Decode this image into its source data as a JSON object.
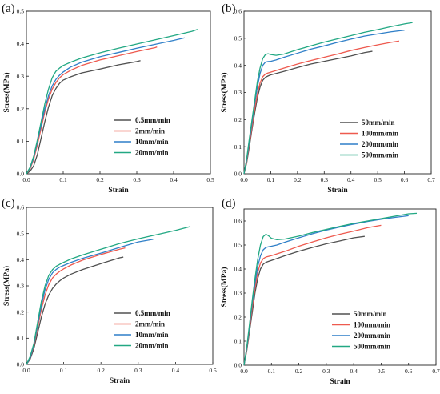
{
  "chart_data": [
    {
      "type": "line",
      "panel_label": "(a)",
      "xlabel": "Strain",
      "ylabel": "Stress(MPa)",
      "xlim": [
        0,
        0.5
      ],
      "ylim": [
        0,
        0.5
      ],
      "xticks": [
        0.0,
        0.1,
        0.2,
        0.3,
        0.4,
        0.5
      ],
      "yticks": [
        0.0,
        0.1,
        0.2,
        0.3,
        0.4,
        0.5
      ],
      "xtick_labels": [
        "0.0",
        "0.1",
        "0.2",
        "0.3",
        "0.4",
        "0.5"
      ],
      "ytick_labels": [
        "0.0",
        "0.1",
        "0.2",
        "0.3",
        "0.4",
        "0.5"
      ],
      "grid": false,
      "legend_position": "bottom-right",
      "series": [
        {
          "name": "0.5mm/min",
          "color": "#505050",
          "x": [
            0,
            0.01,
            0.02,
            0.03,
            0.04,
            0.05,
            0.06,
            0.07,
            0.08,
            0.09,
            0.1,
            0.12,
            0.15,
            0.2,
            0.25,
            0.3,
            0.31
          ],
          "y": [
            0,
            0.008,
            0.025,
            0.06,
            0.11,
            0.16,
            0.205,
            0.24,
            0.262,
            0.278,
            0.288,
            0.298,
            0.31,
            0.322,
            0.335,
            0.345,
            0.348
          ]
        },
        {
          "name": "2mm/min",
          "color": "#ee5a4f",
          "x": [
            0,
            0.01,
            0.02,
            0.03,
            0.04,
            0.05,
            0.06,
            0.07,
            0.08,
            0.09,
            0.1,
            0.12,
            0.15,
            0.2,
            0.25,
            0.3,
            0.35,
            0.355
          ],
          "y": [
            0,
            0.015,
            0.045,
            0.09,
            0.14,
            0.19,
            0.23,
            0.26,
            0.28,
            0.295,
            0.305,
            0.318,
            0.333,
            0.35,
            0.363,
            0.376,
            0.388,
            0.39
          ]
        },
        {
          "name": "10mm/min",
          "color": "#2f7fc8",
          "x": [
            0,
            0.01,
            0.02,
            0.03,
            0.04,
            0.05,
            0.06,
            0.07,
            0.08,
            0.09,
            0.1,
            0.12,
            0.15,
            0.2,
            0.25,
            0.3,
            0.35,
            0.4,
            0.43
          ],
          "y": [
            0,
            0.018,
            0.05,
            0.1,
            0.15,
            0.2,
            0.24,
            0.27,
            0.29,
            0.303,
            0.313,
            0.328,
            0.343,
            0.36,
            0.373,
            0.386,
            0.398,
            0.41,
            0.418
          ]
        },
        {
          "name": "20mm/min",
          "color": "#22a883",
          "x": [
            0,
            0.01,
            0.02,
            0.03,
            0.04,
            0.05,
            0.06,
            0.07,
            0.08,
            0.09,
            0.1,
            0.12,
            0.15,
            0.2,
            0.25,
            0.3,
            0.35,
            0.4,
            0.45,
            0.465
          ],
          "y": [
            0,
            0.02,
            0.055,
            0.105,
            0.16,
            0.215,
            0.26,
            0.295,
            0.315,
            0.325,
            0.333,
            0.343,
            0.356,
            0.372,
            0.386,
            0.399,
            0.412,
            0.425,
            0.438,
            0.444
          ]
        }
      ]
    },
    {
      "type": "line",
      "panel_label": "(b)",
      "xlabel": "Strain",
      "ylabel": "Stress(MPa)",
      "xlim": [
        0,
        0.7
      ],
      "ylim": [
        0,
        0.6
      ],
      "xticks": [
        0.0,
        0.1,
        0.2,
        0.3,
        0.4,
        0.5,
        0.6,
        0.7
      ],
      "yticks": [
        0.0,
        0.1,
        0.2,
        0.3,
        0.4,
        0.5,
        0.6
      ],
      "xtick_labels": [
        "0.0",
        "0.1",
        "0.2",
        "0.3",
        "0.4",
        "0.5",
        "0.6",
        "0.7"
      ],
      "ytick_labels": [
        "0.0",
        "0.1",
        "0.2",
        "0.3",
        "0.4",
        "0.5",
        "0.6"
      ],
      "grid": false,
      "legend_position": "bottom-right",
      "series": [
        {
          "name": "50mm/min",
          "color": "#505050",
          "x": [
            0,
            0.01,
            0.02,
            0.03,
            0.04,
            0.05,
            0.06,
            0.07,
            0.08,
            0.09,
            0.1,
            0.15,
            0.2,
            0.25,
            0.3,
            0.35,
            0.4,
            0.45,
            0.48
          ],
          "y": [
            0,
            0.04,
            0.1,
            0.165,
            0.225,
            0.28,
            0.32,
            0.345,
            0.356,
            0.361,
            0.365,
            0.378,
            0.392,
            0.405,
            0.415,
            0.425,
            0.435,
            0.447,
            0.452
          ]
        },
        {
          "name": "100mm/min",
          "color": "#ee5a4f",
          "x": [
            0,
            0.01,
            0.02,
            0.03,
            0.04,
            0.05,
            0.06,
            0.07,
            0.08,
            0.09,
            0.1,
            0.15,
            0.2,
            0.25,
            0.3,
            0.35,
            0.4,
            0.45,
            0.5,
            0.55,
            0.58
          ],
          "y": [
            0,
            0.045,
            0.11,
            0.175,
            0.24,
            0.295,
            0.335,
            0.358,
            0.368,
            0.372,
            0.375,
            0.39,
            0.405,
            0.418,
            0.43,
            0.442,
            0.455,
            0.466,
            0.476,
            0.485,
            0.49
          ]
        },
        {
          "name": "200mm/min",
          "color": "#2f7fc8",
          "x": [
            0,
            0.01,
            0.02,
            0.03,
            0.04,
            0.05,
            0.06,
            0.07,
            0.08,
            0.09,
            0.1,
            0.12,
            0.15,
            0.2,
            0.25,
            0.3,
            0.35,
            0.4,
            0.45,
            0.5,
            0.55,
            0.6
          ],
          "y": [
            0,
            0.05,
            0.12,
            0.19,
            0.26,
            0.32,
            0.37,
            0.4,
            0.412,
            0.414,
            0.415,
            0.42,
            0.43,
            0.445,
            0.46,
            0.472,
            0.485,
            0.497,
            0.508,
            0.516,
            0.524,
            0.53
          ]
        },
        {
          "name": "500mm/min",
          "color": "#22a883",
          "x": [
            0,
            0.01,
            0.02,
            0.03,
            0.04,
            0.05,
            0.06,
            0.07,
            0.08,
            0.09,
            0.1,
            0.12,
            0.15,
            0.2,
            0.25,
            0.3,
            0.35,
            0.4,
            0.45,
            0.5,
            0.55,
            0.6,
            0.63
          ],
          "y": [
            0,
            0.055,
            0.13,
            0.2,
            0.27,
            0.34,
            0.39,
            0.425,
            0.44,
            0.443,
            0.44,
            0.437,
            0.442,
            0.458,
            0.472,
            0.486,
            0.498,
            0.51,
            0.522,
            0.532,
            0.543,
            0.553,
            0.558
          ]
        }
      ]
    },
    {
      "type": "line",
      "panel_label": "(c)",
      "xlabel": "Strain",
      "ylabel": "Stress(MPa)",
      "xlim": [
        0,
        0.5
      ],
      "ylim": [
        0,
        0.6
      ],
      "xticks": [
        0.0,
        0.1,
        0.2,
        0.3,
        0.4,
        0.5
      ],
      "yticks": [
        0.0,
        0.1,
        0.2,
        0.3,
        0.4,
        0.5,
        0.6
      ],
      "xtick_labels": [
        "0.0",
        "0.1",
        "0.2",
        "0.3",
        "0.4",
        "0.5"
      ],
      "ytick_labels": [
        "0.0",
        "0.1",
        "0.2",
        "0.3",
        "0.4",
        "0.5",
        "0.6"
      ],
      "grid": false,
      "legend_position": "bottom-right",
      "series": [
        {
          "name": "0.5mm/min",
          "color": "#505050",
          "x": [
            0,
            0.01,
            0.02,
            0.03,
            0.04,
            0.05,
            0.06,
            0.07,
            0.08,
            0.09,
            0.1,
            0.12,
            0.15,
            0.2,
            0.25,
            0.26
          ],
          "y": [
            0,
            0.02,
            0.06,
            0.12,
            0.18,
            0.23,
            0.265,
            0.29,
            0.307,
            0.32,
            0.33,
            0.345,
            0.362,
            0.385,
            0.407,
            0.41
          ]
        },
        {
          "name": "2mm/min",
          "color": "#ee5a4f",
          "x": [
            0,
            0.01,
            0.02,
            0.03,
            0.04,
            0.05,
            0.06,
            0.07,
            0.08,
            0.09,
            0.1,
            0.12,
            0.15,
            0.2,
            0.25,
            0.265
          ],
          "y": [
            0,
            0.025,
            0.07,
            0.14,
            0.21,
            0.265,
            0.305,
            0.33,
            0.345,
            0.356,
            0.365,
            0.38,
            0.398,
            0.42,
            0.44,
            0.445
          ]
        },
        {
          "name": "10mm/min",
          "color": "#2f7fc8",
          "x": [
            0,
            0.01,
            0.02,
            0.03,
            0.04,
            0.05,
            0.06,
            0.07,
            0.08,
            0.09,
            0.1,
            0.12,
            0.15,
            0.2,
            0.25,
            0.3,
            0.34
          ],
          "y": [
            0,
            0.025,
            0.075,
            0.15,
            0.225,
            0.285,
            0.325,
            0.35,
            0.363,
            0.372,
            0.378,
            0.39,
            0.405,
            0.425,
            0.447,
            0.468,
            0.478
          ]
        },
        {
          "name": "20mm/min",
          "color": "#22a883",
          "x": [
            0,
            0.01,
            0.02,
            0.03,
            0.04,
            0.05,
            0.06,
            0.07,
            0.08,
            0.09,
            0.1,
            0.12,
            0.15,
            0.2,
            0.25,
            0.3,
            0.35,
            0.4,
            0.44
          ],
          "y": [
            0,
            0.03,
            0.08,
            0.16,
            0.24,
            0.3,
            0.34,
            0.362,
            0.375,
            0.383,
            0.39,
            0.403,
            0.418,
            0.44,
            0.462,
            0.48,
            0.496,
            0.512,
            0.527
          ]
        }
      ]
    },
    {
      "type": "line",
      "panel_label": "(d)",
      "xlabel": "Strain",
      "ylabel": "Stress(MPa)",
      "xlim": [
        0,
        0.7
      ],
      "ylim": [
        0,
        0.65
      ],
      "xticks": [
        0.0,
        0.1,
        0.2,
        0.3,
        0.4,
        0.5,
        0.6,
        0.7
      ],
      "yticks": [
        0.0,
        0.1,
        0.2,
        0.3,
        0.4,
        0.5,
        0.6
      ],
      "xtick_labels": [
        "0.0",
        "0.1",
        "0.2",
        "0.3",
        "0.4",
        "0.5",
        "0.6",
        "0.7"
      ],
      "ytick_labels": [
        "0.0",
        "0.1",
        "0.2",
        "0.3",
        "0.4",
        "0.5",
        "0.6"
      ],
      "grid": false,
      "legend_position": "bottom-right",
      "series": [
        {
          "name": "50mm/min",
          "color": "#505050",
          "x": [
            0,
            0.01,
            0.02,
            0.03,
            0.04,
            0.05,
            0.06,
            0.07,
            0.08,
            0.09,
            0.1,
            0.15,
            0.2,
            0.25,
            0.3,
            0.35,
            0.4,
            0.44
          ],
          "y": [
            0,
            0.06,
            0.14,
            0.22,
            0.3,
            0.36,
            0.4,
            0.42,
            0.428,
            0.432,
            0.436,
            0.456,
            0.474,
            0.49,
            0.505,
            0.517,
            0.53,
            0.536
          ]
        },
        {
          "name": "100mm/min",
          "color": "#ee5a4f",
          "x": [
            0,
            0.01,
            0.02,
            0.03,
            0.04,
            0.05,
            0.06,
            0.07,
            0.08,
            0.09,
            0.1,
            0.15,
            0.2,
            0.25,
            0.3,
            0.35,
            0.4,
            0.45,
            0.5
          ],
          "y": [
            0,
            0.065,
            0.15,
            0.24,
            0.32,
            0.385,
            0.425,
            0.443,
            0.45,
            0.453,
            0.456,
            0.474,
            0.495,
            0.513,
            0.53,
            0.545,
            0.558,
            0.572,
            0.582
          ]
        },
        {
          "name": "200mm/min",
          "color": "#2f7fc8",
          "x": [
            0,
            0.01,
            0.02,
            0.03,
            0.04,
            0.05,
            0.06,
            0.07,
            0.08,
            0.09,
            0.1,
            0.12,
            0.15,
            0.2,
            0.25,
            0.3,
            0.35,
            0.4,
            0.45,
            0.5,
            0.55,
            0.6
          ],
          "y": [
            0,
            0.07,
            0.16,
            0.26,
            0.34,
            0.41,
            0.455,
            0.48,
            0.49,
            0.493,
            0.495,
            0.5,
            0.512,
            0.53,
            0.547,
            0.562,
            0.575,
            0.587,
            0.598,
            0.607,
            0.615,
            0.622
          ]
        },
        {
          "name": "500mm/min",
          "color": "#22a883",
          "x": [
            0,
            0.01,
            0.02,
            0.03,
            0.04,
            0.05,
            0.06,
            0.07,
            0.08,
            0.09,
            0.1,
            0.12,
            0.15,
            0.2,
            0.25,
            0.3,
            0.35,
            0.4,
            0.45,
            0.5,
            0.55,
            0.6,
            0.63
          ],
          "y": [
            0,
            0.075,
            0.17,
            0.27,
            0.36,
            0.44,
            0.5,
            0.535,
            0.545,
            0.538,
            0.528,
            0.522,
            0.525,
            0.537,
            0.552,
            0.565,
            0.578,
            0.59,
            0.6,
            0.61,
            0.62,
            0.63,
            0.632
          ]
        }
      ]
    }
  ]
}
